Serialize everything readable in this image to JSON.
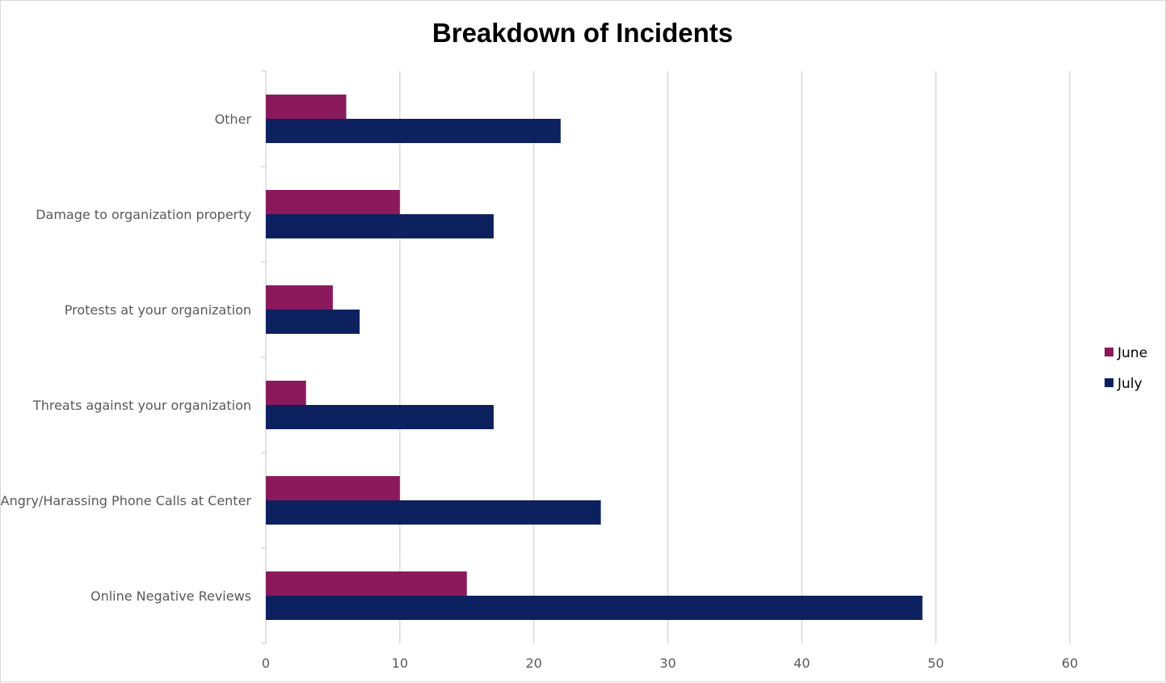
{
  "chart_data": {
    "type": "bar",
    "orientation": "horizontal",
    "title": "Breakdown of Incidents",
    "categories": [
      "Other",
      "Damage to organization property",
      "Protests at your organization",
      "Threats against your organization",
      "Angry/Harassing Phone Calls at Center",
      "Online Negative Reviews"
    ],
    "series": [
      {
        "name": "June",
        "color": "#8b1a5c",
        "values": [
          6,
          10,
          5,
          3,
          10,
          15
        ]
      },
      {
        "name": "July",
        "color": "#0d215e",
        "values": [
          22,
          17,
          7,
          17,
          25,
          49
        ]
      }
    ],
    "xlim": [
      0,
      60
    ],
    "x_ticks": [
      0,
      10,
      20,
      30,
      40,
      50,
      60
    ],
    "grid": "vertical",
    "legend_position": "right"
  }
}
